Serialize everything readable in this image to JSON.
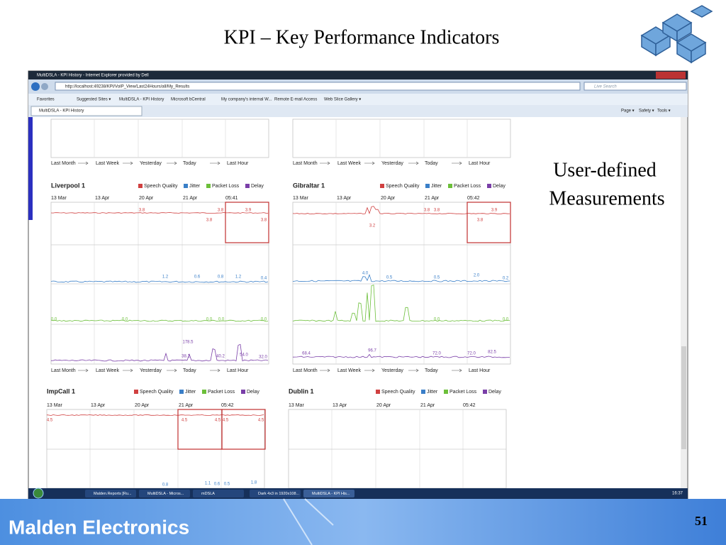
{
  "slide": {
    "title": "KPI – Key Performance Indicators",
    "note": [
      "User-defined",
      "Measurements"
    ],
    "brand": "Malden Electronics",
    "page_number": "51"
  },
  "browser": {
    "window_title": "MultiDSLA - KPI History - Internet Explorer provided by Dell",
    "url": "http://localhost:49238/KPI/VoIP_View/Last24Hours/all/My_Results",
    "search": "Live Search",
    "favorites": [
      "Favorites",
      "Suggested Sites ▾",
      "MultiDSLA - KPI History",
      "Microsoft bCentral",
      "My company's internal W...",
      "Remote E-mail Access",
      "Web Slice Gallery ▾"
    ],
    "tab": "MultiDSLA - KPI History",
    "tools": [
      "Page ▾",
      "Safety ▾",
      "Tools ▾"
    ]
  },
  "legend": [
    "Speech Quality",
    "Jitter",
    "Packet Loss",
    "Delay"
  ],
  "timeline": [
    "Last Month",
    "Last Week",
    "Yesterday",
    "Today",
    "Last Hour"
  ],
  "panels": [
    {
      "name": "Liverpool 1",
      "dates": [
        "13 Mar",
        "13 Apr",
        "20 Apr",
        "21 Apr",
        "05:41"
      ],
      "labels": [
        [
          "3.8",
          "3.8",
          "3.8",
          "3.9",
          "3.8"
        ],
        [
          "1.2",
          "0.6",
          "0.8",
          "1.2",
          "0.4"
        ],
        [
          "0.0",
          "0.0",
          "0.0",
          "0.0",
          "0.0"
        ],
        [
          "178.5",
          "38.1",
          "40.2",
          "54.0",
          "32.0"
        ]
      ]
    },
    {
      "name": "Gibraltar 1",
      "dates": [
        "13 Mar",
        "13 Apr",
        "20 Apr",
        "21 Apr",
        "05:42"
      ],
      "labels": [
        [
          "3.2",
          "3.8",
          "3.8",
          "3.8",
          "3.9"
        ],
        [
          "4.0",
          "0.5",
          "0.5",
          "2.0",
          "0.2"
        ],
        [
          "0.0",
          "0.0"
        ],
        [
          "68.4",
          "96.7",
          "72.0",
          "72.0",
          "82.5"
        ]
      ]
    },
    {
      "name": "ImpCall 1",
      "dates": [
        "13 Mar",
        "13 Apr",
        "20 Apr",
        "21 Apr",
        "05:42"
      ],
      "labels": [
        [
          "4.5",
          "4.5",
          "4.5",
          "4.5",
          "4.5"
        ],
        [
          "0.8",
          "1.1",
          "0.6",
          "0.5",
          "1.8"
        ]
      ]
    },
    {
      "name": "Dublin 1",
      "dates": [
        "13 Mar",
        "13 Apr",
        "20 Apr",
        "21 Apr",
        "05:42"
      ],
      "labels": []
    }
  ],
  "taskbar": {
    "items": [
      "Malden.Reports [Ru...",
      "MultiDSLA - Micros...",
      "mDSLA",
      "Dark 4x3 in 1920x108...",
      "MultiDSLA - KPI His..."
    ],
    "clock": "16:37"
  }
}
